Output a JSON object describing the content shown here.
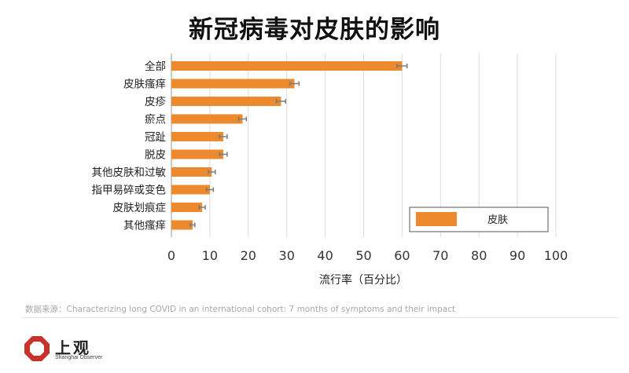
{
  "page": {
    "title": "新冠病毒对皮肤的影响",
    "source": "数据来源：Characterizing long COVID in an international cohort: 7 months of symptoms and their impact",
    "logo": {
      "name": "上观",
      "sub": "Shanghai Observer",
      "color": "#c8322d"
    }
  },
  "chart_data": {
    "type": "bar",
    "orientation": "horizontal",
    "title": "新冠病毒对皮肤的影响",
    "xlabel": "流行率（百分比）",
    "ylabel": "",
    "xlim": [
      0,
      100
    ],
    "xticks": [
      0,
      10,
      20,
      30,
      40,
      50,
      60,
      70,
      80,
      90,
      100
    ],
    "grid": true,
    "legend_position": "bottom-right",
    "categories": [
      "全部",
      "皮肤瘙痒",
      "皮疹",
      "瘀点",
      "冠趾",
      "脱皮",
      "其他皮肤和过敏",
      "指甲易碎或变色",
      "皮肤划痕症",
      "其他瘙痒"
    ],
    "series": [
      {
        "name": "皮肤",
        "color": "#ee8a2e",
        "values": [
          60,
          32,
          28.5,
          18.5,
          13.5,
          13.5,
          10.5,
          10,
          8,
          5.5
        ],
        "errors": [
          1.3,
          1.2,
          1.2,
          1.0,
          1.0,
          1.0,
          0.9,
          0.9,
          0.8,
          0.6
        ]
      }
    ]
  }
}
